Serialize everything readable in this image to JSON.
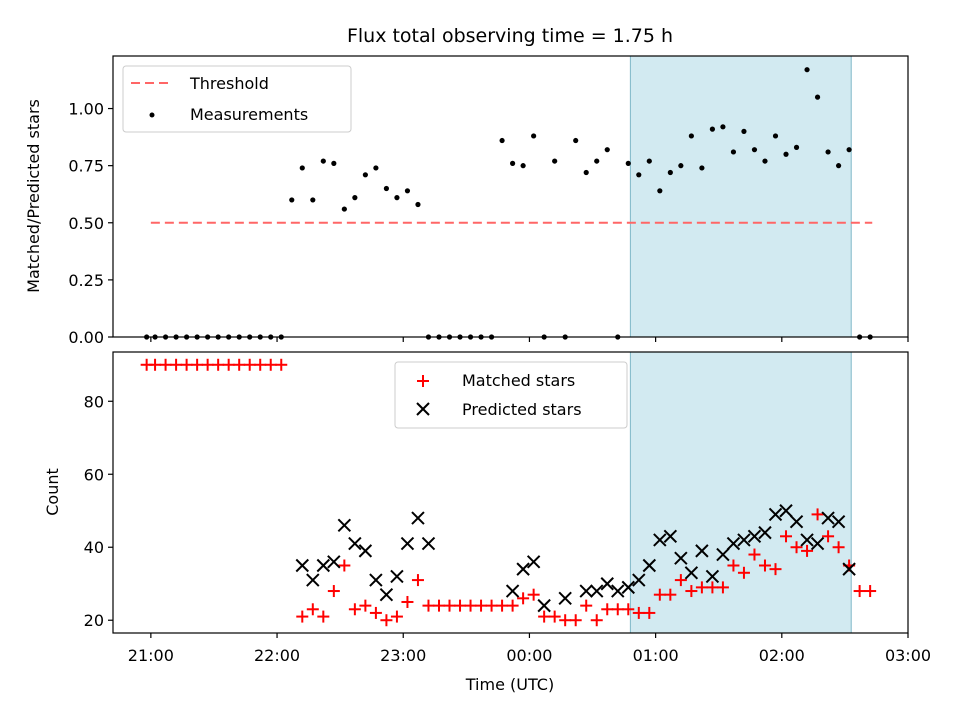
{
  "chart_data": [
    {
      "type": "scatter",
      "title": "Flux total observing time = 1.75 h",
      "xlabel": "",
      "ylabel": "Matched/Predicted stars",
      "x_unit": "UTC time",
      "xlim": [
        "21:00",
        "03:00"
      ],
      "xlim_hours": [
        20.7,
        27.0
      ],
      "ylim": [
        0,
        1.23
      ],
      "yticks": [
        "0.00",
        "0.25",
        "0.50",
        "0.75",
        "1.00"
      ],
      "ytick_values": [
        0,
        0.25,
        0.5,
        0.75,
        1.0
      ],
      "shaded_region": {
        "start": "00:48",
        "end": "02:33",
        "color": "#add8e6"
      },
      "threshold": {
        "name": "Threshold",
        "y": 0.5,
        "x_start": "21:00",
        "x_end": "02:43",
        "color": "#ff6666"
      },
      "legend": {
        "placement": "upper-left",
        "entries": [
          "Threshold",
          "Measurements"
        ]
      },
      "series": [
        {
          "name": "Measurements",
          "marker": "dot",
          "color": "#000000",
          "x": [
            "20:58",
            "21:02",
            "21:07",
            "21:12",
            "21:17",
            "21:22",
            "21:27",
            "21:32",
            "21:37",
            "21:42",
            "21:47",
            "21:52",
            "21:57",
            "22:02",
            "22:07",
            "22:12",
            "22:17",
            "22:22",
            "22:27",
            "22:32",
            "22:37",
            "22:42",
            "22:47",
            "22:52",
            "22:57",
            "23:02",
            "23:07",
            "23:12",
            "23:17",
            "23:22",
            "23:27",
            "23:32",
            "23:37",
            "23:42",
            "23:47",
            "23:52",
            "23:57",
            "00:02",
            "00:07",
            "00:12",
            "00:17",
            "00:22",
            "00:27",
            "00:32",
            "00:37",
            "00:42",
            "00:47",
            "00:52",
            "00:57",
            "01:02",
            "01:07",
            "01:12",
            "01:17",
            "01:22",
            "01:27",
            "01:32",
            "01:37",
            "01:42",
            "01:47",
            "01:52",
            "01:57",
            "02:02",
            "02:07",
            "02:12",
            "02:17",
            "02:22",
            "02:27",
            "02:32",
            "02:37",
            "02:42"
          ],
          "y": [
            0,
            0,
            0,
            0,
            0,
            0,
            0,
            0,
            0,
            0,
            0,
            0,
            0,
            0,
            0.6,
            0.74,
            0.6,
            0.77,
            0.76,
            0.56,
            0.61,
            0.71,
            0.74,
            0.65,
            0.61,
            0.64,
            0.58,
            0,
            0,
            0,
            0,
            0,
            0,
            0,
            0.86,
            0.76,
            0.75,
            0.88,
            0,
            0.77,
            0,
            0.86,
            0.72,
            0.77,
            0.82,
            0,
            0.76,
            0.71,
            0.77,
            0.64,
            0.72,
            0.75,
            0.88,
            0.74,
            0.91,
            0.92,
            0.81,
            0.9,
            0.82,
            0.77,
            0.88,
            0.8,
            0.83,
            1.17,
            1.05,
            0.81,
            0.75,
            0.82,
            0,
            0
          ]
        }
      ]
    },
    {
      "type": "scatter",
      "title": "",
      "xlabel": "Time (UTC)",
      "ylabel": "Count",
      "x_unit": "UTC time",
      "xlim": [
        "21:00",
        "03:00"
      ],
      "xlim_hours": [
        20.7,
        27.0
      ],
      "ylim": [
        16.5,
        93.5
      ],
      "yticks": [
        "20",
        "40",
        "60",
        "80"
      ],
      "ytick_values": [
        20,
        40,
        60,
        80
      ],
      "xticks": [
        "21:00",
        "22:00",
        "23:00",
        "00:00",
        "01:00",
        "02:00",
        "03:00"
      ],
      "shaded_region": {
        "start": "00:48",
        "end": "02:33",
        "color": "#add8e6"
      },
      "legend": {
        "placement": "upper-center",
        "entries": [
          "Matched stars",
          "Predicted stars"
        ]
      },
      "series": [
        {
          "name": "Matched stars",
          "marker": "plus",
          "color": "#ff0000",
          "x": [
            "20:58",
            "21:02",
            "21:07",
            "21:12",
            "21:17",
            "21:22",
            "21:27",
            "21:32",
            "21:37",
            "21:42",
            "21:47",
            "21:52",
            "21:57",
            "22:02",
            "22:12",
            "22:17",
            "22:22",
            "22:27",
            "22:32",
            "22:37",
            "22:42",
            "22:47",
            "22:52",
            "22:57",
            "23:02",
            "23:07",
            "23:12",
            "23:17",
            "23:22",
            "23:27",
            "23:32",
            "23:37",
            "23:42",
            "23:47",
            "23:52",
            "23:57",
            "00:02",
            "00:07",
            "00:12",
            "00:17",
            "00:22",
            "00:27",
            "00:32",
            "00:37",
            "00:42",
            "00:47",
            "00:52",
            "00:57",
            "01:02",
            "01:07",
            "01:12",
            "01:17",
            "01:22",
            "01:27",
            "01:32",
            "01:37",
            "01:42",
            "01:47",
            "01:52",
            "01:57",
            "02:02",
            "02:07",
            "02:12",
            "02:17",
            "02:22",
            "02:27",
            "02:32",
            "02:37",
            "02:42"
          ],
          "y": [
            90,
            90,
            90,
            90,
            90,
            90,
            90,
            90,
            90,
            90,
            90,
            90,
            90,
            90,
            21,
            23,
            21,
            28,
            35,
            23,
            24,
            22,
            20,
            21,
            25,
            31,
            24,
            24,
            24,
            24,
            24,
            24,
            24,
            24,
            24,
            26,
            27,
            21,
            21,
            20,
            20,
            24,
            20,
            23,
            23,
            23,
            22,
            22,
            27,
            27,
            31,
            28,
            29,
            29,
            29,
            35,
            33,
            38,
            35,
            34,
            43,
            40,
            39,
            49,
            43,
            40,
            35,
            28,
            28
          ]
        },
        {
          "name": "Predicted stars",
          "marker": "x",
          "color": "#000000",
          "x": [
            "22:12",
            "22:17",
            "22:22",
            "22:27",
            "22:32",
            "22:37",
            "22:42",
            "22:47",
            "22:52",
            "22:57",
            "23:02",
            "23:07",
            "23:12",
            "23:52",
            "23:57",
            "00:02",
            "00:07",
            "00:17",
            "00:27",
            "00:32",
            "00:37",
            "00:42",
            "00:47",
            "00:52",
            "00:57",
            "01:02",
            "01:07",
            "01:12",
            "01:17",
            "01:22",
            "01:27",
            "01:32",
            "01:37",
            "01:42",
            "01:47",
            "01:52",
            "01:57",
            "02:02",
            "02:07",
            "02:12",
            "02:17",
            "02:22",
            "02:27",
            "02:32"
          ],
          "y": [
            35,
            31,
            35,
            36,
            46,
            41,
            39,
            31,
            27,
            32,
            41,
            48,
            41,
            28,
            34,
            36,
            24,
            26,
            28,
            28,
            30,
            28,
            29,
            31,
            35,
            42,
            43,
            37,
            33,
            39,
            32,
            38,
            41,
            42,
            43,
            44,
            49,
            50,
            47,
            42,
            41,
            48,
            47,
            34
          ]
        }
      ]
    }
  ]
}
